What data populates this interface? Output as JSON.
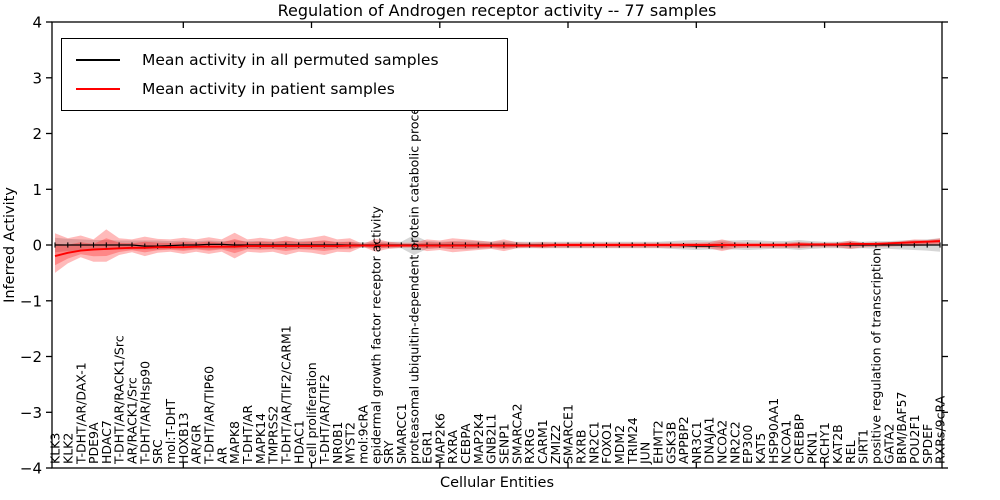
{
  "figure": {
    "title": "Regulation of Androgen receptor activity -- 77 samples",
    "xlabel": "Cellular Entities",
    "ylabel": "Inferred Activity"
  },
  "legend": {
    "items": [
      {
        "label": "Mean activity in all permuted samples",
        "color": "#000000"
      },
      {
        "label": "Mean activity in patient samples",
        "color": "#ff0000"
      }
    ]
  },
  "chart_data": {
    "type": "line",
    "title": "Regulation of Androgen receptor activity -- 77 samples",
    "xlabel": "Cellular Entities",
    "ylabel": "Inferred Activity",
    "ylim": [
      -4,
      4
    ],
    "y_ticks": [
      -4,
      -3,
      -2,
      -1,
      0,
      1,
      2,
      3,
      4
    ],
    "x_tick_positions": [
      10,
      20,
      30,
      40,
      50,
      60
    ],
    "grid": false,
    "legend_position": "upper-left",
    "categories": [
      "KLK3",
      "KLK2",
      "T-DHT/AR/DAX-1",
      "PDE9A",
      "HDAC7",
      "T-DHT/AR/RACK1/Src",
      "AR/RACK1/Src",
      "T-DHT/AR/Hsp90",
      "SRC",
      "mol:T-DHT",
      "HOXB13",
      "AR/GR",
      "T-DHT/AR/TIP60",
      "AR",
      "MAPK8",
      "T-DHT/AR",
      "MAPK14",
      "TMPRSS2",
      "T-DHT/AR/TIF2/CARM1",
      "HDAC1",
      "cell proliferation",
      "T-DHT/AR/TIF2",
      "NR0B1",
      "MYST2",
      "mol:9cRA",
      "epidermal growth factor receptor activity",
      "SRY",
      "SMARCC1",
      "proteasomal ubiquitin-dependent protein catabolic process",
      "EGR1",
      "MAP2K6",
      "RXRA",
      "CEBPA",
      "MAP2K4",
      "GNB2L1",
      "SENP1",
      "SMARCA2",
      "RXRG",
      "CARM1",
      "ZMIZ2",
      "SMARCE1",
      "RXRB",
      "NR2C1",
      "FOXO1",
      "MDM2",
      "TRIM24",
      "JUN",
      "EHMT2",
      "GSK3B",
      "APPBP2",
      "NR3C1",
      "DNAJA1",
      "NCOA2",
      "NR2C2",
      "EP300",
      "KAT5",
      "HSP90AA1",
      "NCOA1",
      "CREBBP",
      "PKN1",
      "RCHY1",
      "KAT2B",
      "REL",
      "SIRT1",
      "positive regulation of transcription",
      "GATA2",
      "BRM/BAF57",
      "POU2F1",
      "SPDEF",
      "RXRs/9cRA"
    ],
    "series": [
      {
        "name": "Mean activity in all permuted samples",
        "color": "#000000",
        "values": [
          0,
          0,
          0,
          0,
          0,
          0,
          0,
          -0.02,
          -0.02,
          -0.01,
          0,
          0,
          0.01,
          0.01,
          0,
          0,
          0,
          0,
          0,
          0,
          0,
          0,
          0,
          0,
          0,
          0,
          0,
          0,
          0,
          0,
          0,
          0,
          0,
          0,
          0,
          0,
          0,
          0,
          0,
          0,
          0,
          0,
          0,
          0,
          0,
          0,
          0,
          0,
          0,
          -0.01,
          -0.02,
          -0.02,
          -0.01,
          0,
          0,
          0,
          0,
          0,
          0,
          0,
          0,
          0,
          0,
          0,
          0,
          0,
          0,
          0,
          0,
          0
        ]
      },
      {
        "name": "Mean activity in patient samples",
        "color": "#ff0000",
        "values": [
          -0.2,
          -0.14,
          -0.1,
          -0.08,
          -0.07,
          -0.06,
          -0.05,
          -0.05,
          -0.04,
          -0.04,
          -0.04,
          -0.03,
          -0.03,
          -0.03,
          -0.03,
          -0.02,
          -0.02,
          -0.02,
          -0.02,
          -0.02,
          -0.02,
          -0.02,
          -0.02,
          -0.01,
          -0.01,
          -0.01,
          -0.01,
          -0.01,
          -0.01,
          -0.01,
          -0.01,
          -0.01,
          -0.01,
          -0.01,
          -0.01,
          -0.01,
          -0.01,
          -0.01,
          -0.01,
          0,
          0,
          0,
          0,
          0,
          0,
          0,
          0,
          0,
          0,
          0,
          0,
          0,
          0,
          0,
          0,
          0,
          0,
          0,
          0.01,
          0.01,
          0.01,
          0.01,
          0.02,
          0.02,
          0.02,
          0.03,
          0.04,
          0.05,
          0.06,
          0.07
        ]
      }
    ],
    "bands": [
      {
        "name": "permuted-samples-range",
        "color": "#999999",
        "opacity": 0.4,
        "upper": [
          0.13,
          0.11,
          0.1,
          0.09,
          0.09,
          0.08,
          0.08,
          0.08,
          0.08,
          0.07,
          0.08,
          0.07,
          0.08,
          0.07,
          0.08,
          0.07,
          0.07,
          0.07,
          0.07,
          0.07,
          0.07,
          0.07,
          0.06,
          0.06,
          0.05,
          0.06,
          0.06,
          0.06,
          0.18,
          0.07,
          0.06,
          0.07,
          0.08,
          0.07,
          0.06,
          0.07,
          0.06,
          0.06,
          0.06,
          0.06,
          0.06,
          0.06,
          0.06,
          0.06,
          0.06,
          0.06,
          0.06,
          0.06,
          0.07,
          0.08,
          0.09,
          0.08,
          0.08,
          0.08,
          0.09,
          0.08,
          0.07,
          0.07,
          0.09,
          0.07,
          0.06,
          0.06,
          0.07,
          0.06,
          0.07,
          0.07,
          0.08,
          0.09,
          0.1,
          0.12
        ],
        "lower": [
          -0.13,
          -0.11,
          -0.1,
          -0.09,
          -0.09,
          -0.08,
          -0.08,
          -0.08,
          -0.08,
          -0.07,
          -0.08,
          -0.07,
          -0.08,
          -0.07,
          -0.08,
          -0.07,
          -0.07,
          -0.07,
          -0.07,
          -0.07,
          -0.07,
          -0.07,
          -0.06,
          -0.06,
          -0.05,
          -0.06,
          -0.06,
          -0.06,
          -0.18,
          -0.07,
          -0.06,
          -0.07,
          -0.08,
          -0.07,
          -0.06,
          -0.07,
          -0.06,
          -0.06,
          -0.06,
          -0.06,
          -0.06,
          -0.06,
          -0.06,
          -0.06,
          -0.06,
          -0.06,
          -0.06,
          -0.06,
          -0.07,
          -0.08,
          -0.09,
          -0.08,
          -0.08,
          -0.08,
          -0.09,
          -0.08,
          -0.07,
          -0.07,
          -0.09,
          -0.07,
          -0.06,
          -0.06,
          -0.07,
          -0.06,
          -0.07,
          -0.07,
          -0.08,
          -0.09,
          -0.1,
          -0.12
        ]
      },
      {
        "name": "patient-samples-range",
        "color": "#ff0000",
        "opacity": 0.27,
        "upper": [
          0.21,
          0.12,
          0.17,
          0.1,
          0.28,
          0.12,
          0.1,
          0.15,
          0.11,
          0.1,
          0.13,
          0.1,
          0.14,
          0.1,
          0.22,
          0.1,
          0.13,
          0.1,
          0.16,
          0.1,
          0.13,
          0.17,
          0.1,
          0.12,
          0.02,
          0.11,
          0.06,
          0.04,
          0.04,
          0.1,
          0.08,
          0.12,
          0.1,
          0.08,
          0.06,
          0.1,
          0.05,
          0.04,
          0.05,
          0.04,
          0.04,
          0.04,
          0.04,
          0.04,
          0.04,
          0.04,
          0.04,
          0.04,
          0.04,
          0.04,
          0.04,
          0.05,
          0.1,
          0.05,
          0.04,
          0.04,
          0.04,
          0.04,
          0.06,
          0.04,
          0.04,
          0.04,
          0.08,
          0.04,
          0.05,
          0.05,
          0.07,
          0.1,
          0.09,
          0.12
        ],
        "lower": [
          -0.5,
          -0.33,
          -0.22,
          -0.3,
          -0.3,
          -0.18,
          -0.13,
          -0.2,
          -0.14,
          -0.12,
          -0.16,
          -0.12,
          -0.16,
          -0.12,
          -0.24,
          -0.12,
          -0.14,
          -0.12,
          -0.18,
          -0.12,
          -0.14,
          -0.18,
          -0.12,
          -0.13,
          -0.03,
          -0.12,
          -0.07,
          -0.05,
          -0.05,
          -0.11,
          -0.09,
          -0.13,
          -0.11,
          -0.09,
          -0.07,
          -0.11,
          -0.06,
          -0.05,
          -0.06,
          -0.05,
          -0.05,
          -0.05,
          -0.05,
          -0.05,
          -0.05,
          -0.05,
          -0.05,
          -0.05,
          -0.05,
          -0.05,
          -0.05,
          -0.06,
          -0.11,
          -0.06,
          -0.05,
          -0.05,
          -0.05,
          -0.05,
          -0.06,
          -0.04,
          -0.04,
          -0.04,
          -0.07,
          -0.04,
          -0.03,
          -0.03,
          -0.02,
          -0.02,
          -0.01,
          0
        ]
      }
    ]
  }
}
